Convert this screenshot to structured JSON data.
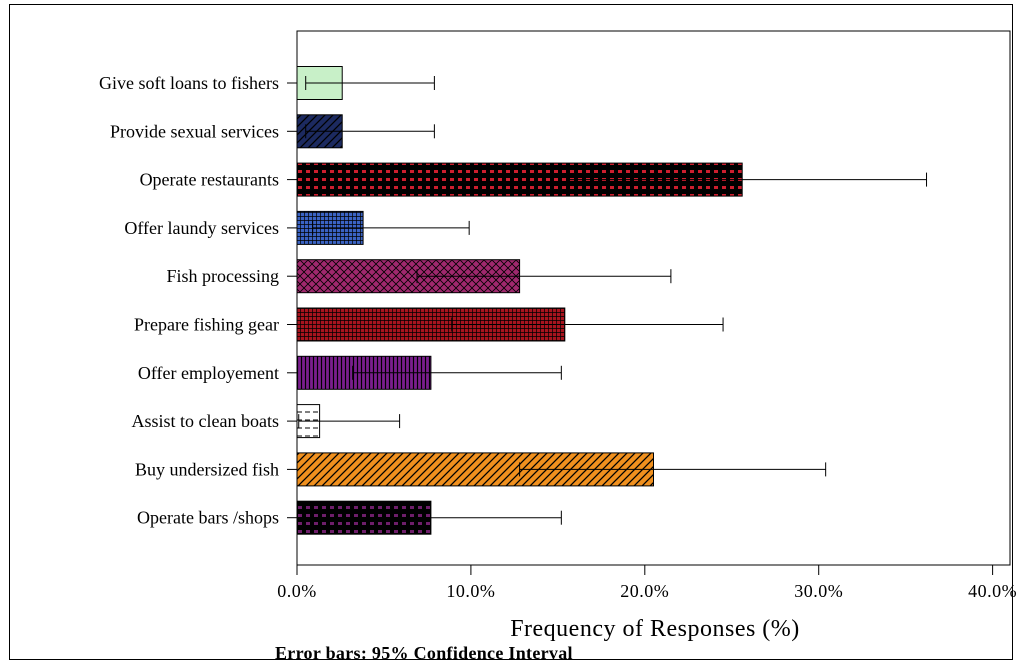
{
  "chart_data": {
    "type": "bar",
    "orientation": "horizontal",
    "categories": [
      "Give soft loans to fishers",
      "Provide sexual services",
      "Operate restaurants",
      "Offer laundy services",
      "Fish processing",
      "Prepare fishing gear",
      "Offer employement",
      "Assist to clean boats",
      "Buy undersized fish",
      "Operate bars /shops"
    ],
    "values": [
      2.6,
      2.6,
      25.6,
      3.8,
      12.8,
      15.4,
      7.7,
      1.3,
      20.5,
      7.7
    ],
    "error_low": [
      0.5,
      0.5,
      15.6,
      0.9,
      6.9,
      8.9,
      3.2,
      0.1,
      12.8,
      3.2
    ],
    "error_high": [
      7.9,
      7.9,
      36.2,
      9.9,
      21.5,
      24.5,
      15.2,
      5.9,
      30.4,
      15.2
    ],
    "bar_colors": [
      "#c8f0c8",
      "#1c2a60",
      "#cc1e2e",
      "#3a63c4",
      "#a0286e",
      "#a8141e",
      "#7a1e8e",
      "#ffffff",
      "#f0901e",
      "#6e1e6a"
    ],
    "bar_patterns": [
      "solid",
      "diagonal",
      "dots",
      "grid",
      "crosshatch",
      "grid",
      "vertical",
      "dashes",
      "diagonal",
      "dots"
    ],
    "xlabel": "Frequency of Responses (%)",
    "xlim": [
      0,
      41
    ],
    "xticks": [
      "0.0%",
      "10.0%",
      "20.0%",
      "30.0%",
      "40.0%"
    ],
    "xtick_values": [
      0,
      10,
      20,
      30,
      40
    ],
    "grid": false,
    "legend": "none",
    "note": "Error bars: 95% Confidence Interval"
  }
}
